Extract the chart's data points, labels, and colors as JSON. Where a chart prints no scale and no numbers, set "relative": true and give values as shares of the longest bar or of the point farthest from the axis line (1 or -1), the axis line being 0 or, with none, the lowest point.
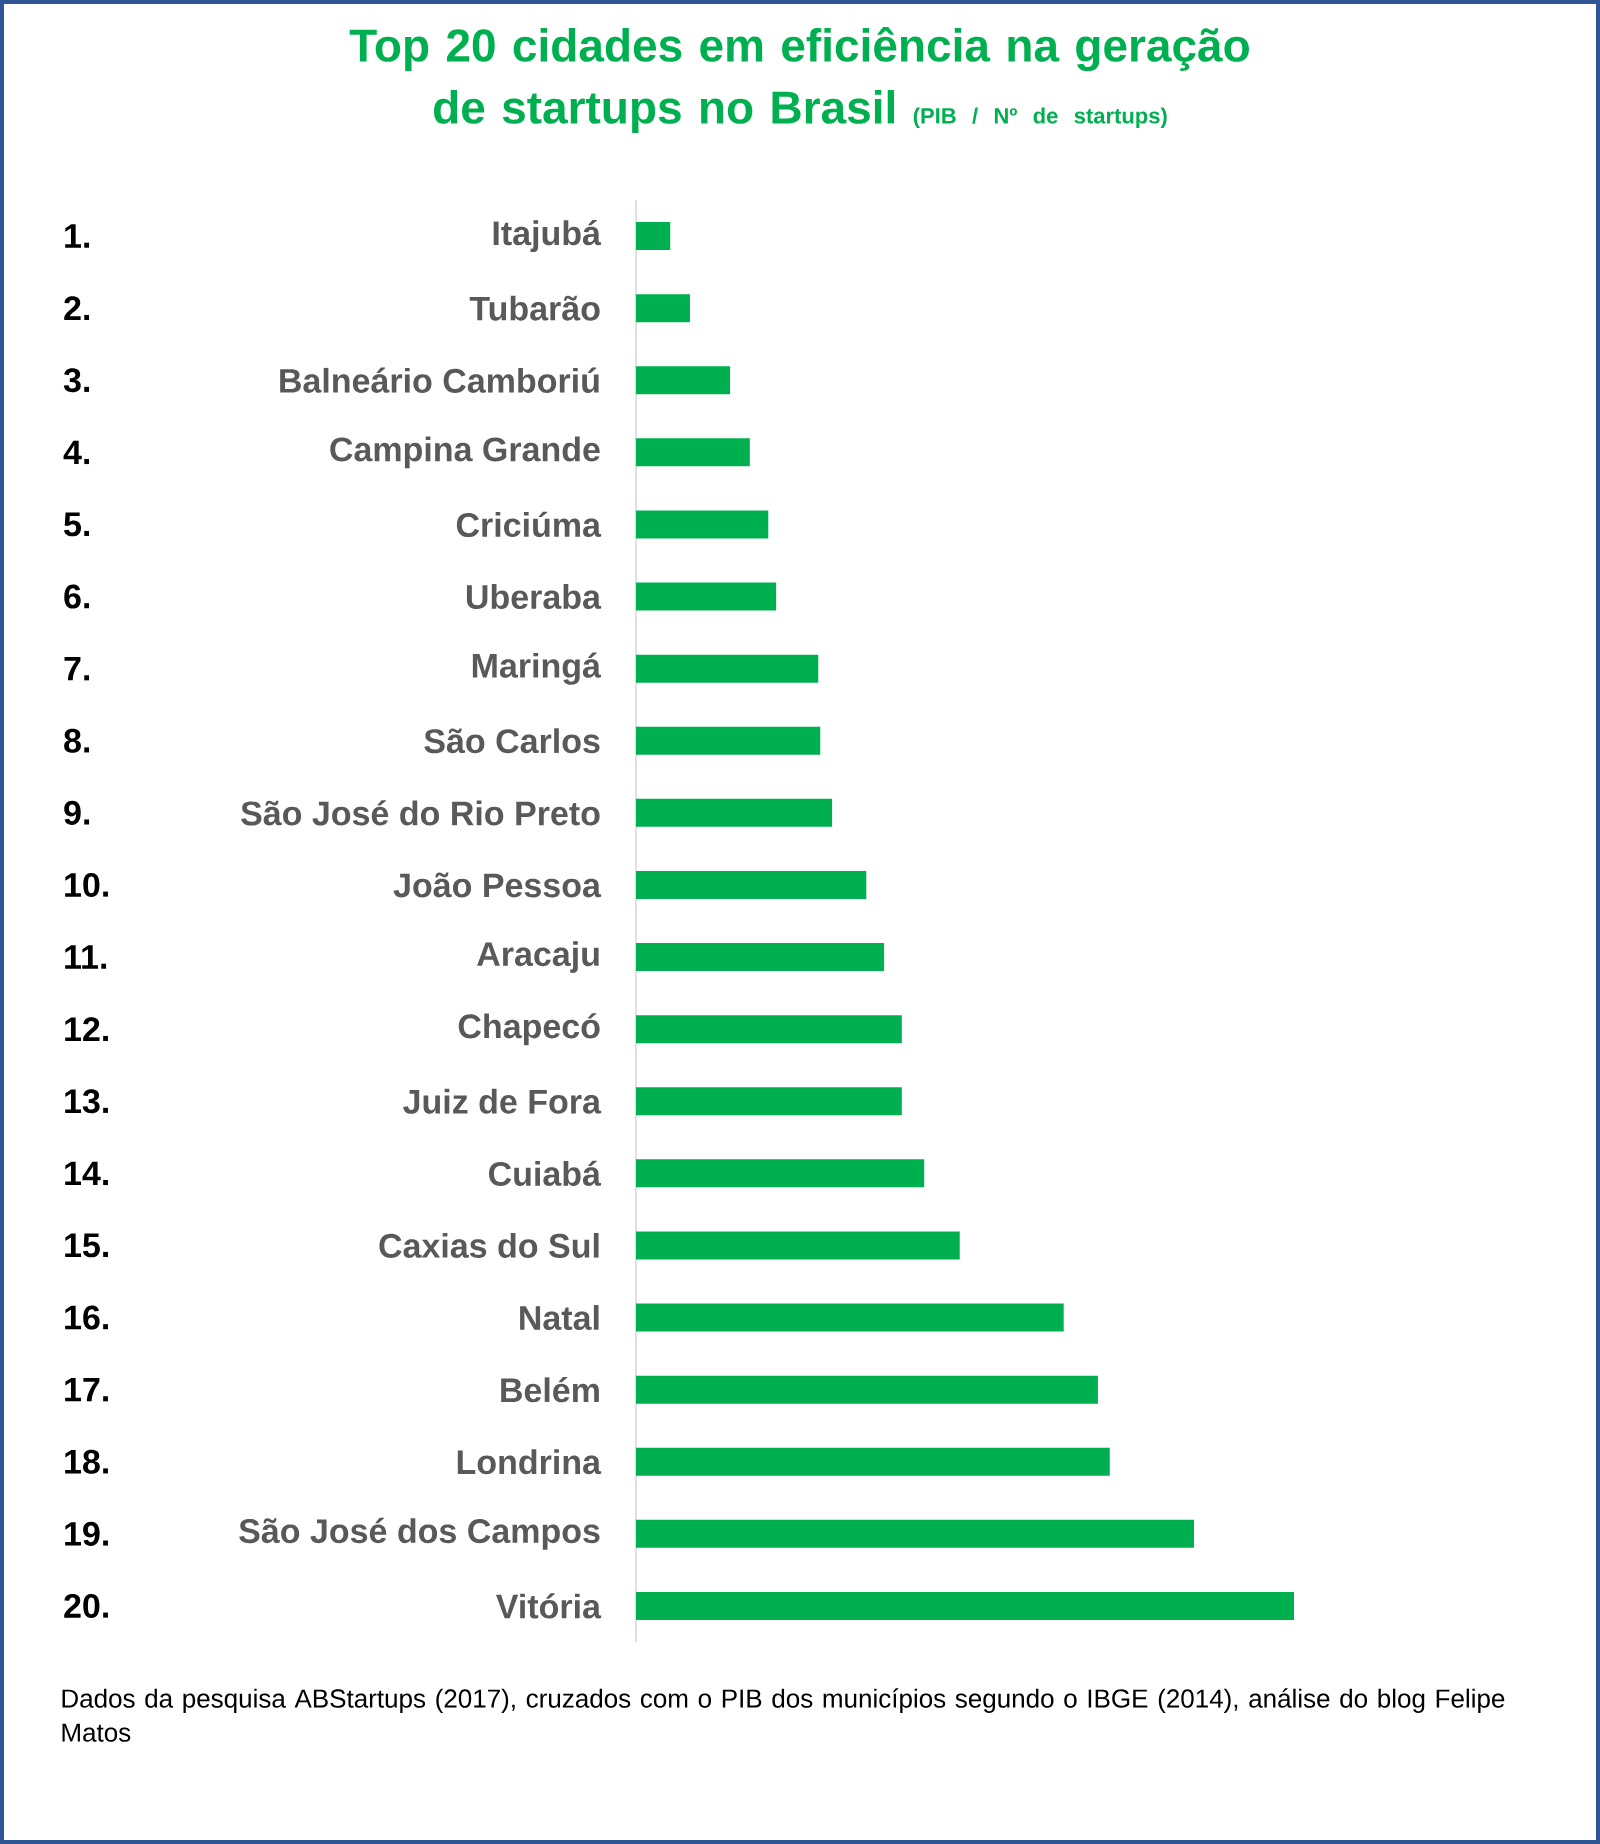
{
  "chart_data": {
    "type": "bar",
    "orientation": "horizontal",
    "relative": true,
    "title": "Top 20 cidades em eficiência na geração de startups no Brasil",
    "subtitle": "(PIB / Nº de startups)",
    "color": "#00b050",
    "categories": [
      "Itajubá",
      "Tubarão",
      "Balneário Camboriú",
      "Campina Grande",
      "Criciúma",
      "Uberaba",
      "Maringá",
      "São Carlos",
      "São José do Rio Preto",
      "João Pessoa",
      "Aracaju",
      "Chapecó",
      "Juiz de Fora",
      "Cuiabá",
      "Caxias do Sul",
      "Natal",
      "Belém",
      "Londrina",
      "São José dos Campos",
      "Vitória"
    ],
    "values": [
      0.052,
      0.082,
      0.143,
      0.173,
      0.201,
      0.213,
      0.277,
      0.28,
      0.298,
      0.35,
      0.377,
      0.404,
      0.404,
      0.438,
      0.492,
      0.65,
      0.702,
      0.72,
      0.848,
      1
    ],
    "annotations": [
      "1.",
      "2.",
      "3.",
      "4.",
      "5.",
      "6.",
      "7.",
      "8.",
      "9.",
      "10.",
      "11.",
      "12.",
      "13.",
      "14.",
      "15.",
      "16.",
      "17.",
      "18.",
      "19.",
      "20.",
      "Dados da pesquisa ABStartups (2017), cruzados com o PIB dos municípios segundo o IBGE (2014), análise do blog Felipe Matos"
    ]
  }
}
